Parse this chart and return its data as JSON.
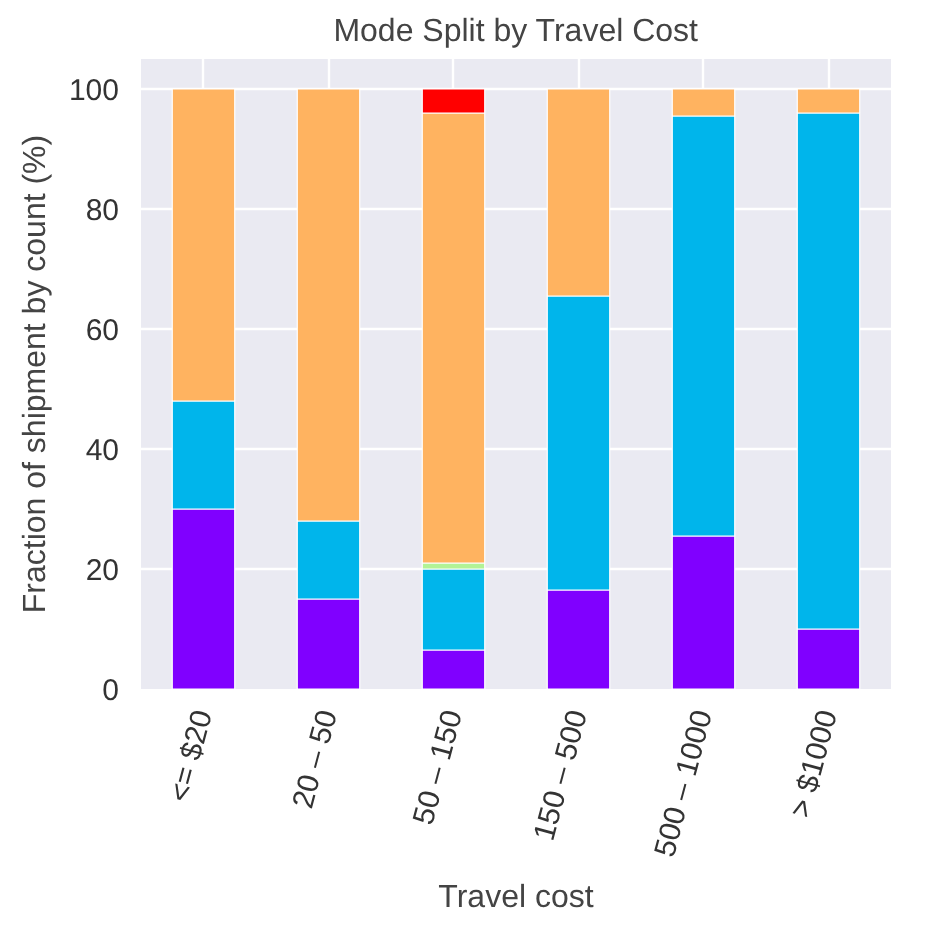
{
  "chart_data": {
    "type": "bar",
    "title": "Mode Split by Travel Cost",
    "xlabel": "Travel cost",
    "ylabel": "Fraction of shipment by count (%)",
    "categories": [
      "<= $20",
      "20 – 50",
      "50 – 150",
      "150 – 500",
      "500 – 1000",
      "> $1000"
    ],
    "stacked": true,
    "grid": true,
    "ylim": [
      0,
      105
    ],
    "yticks": [
      0,
      20,
      40,
      60,
      80,
      100
    ],
    "series": [
      {
        "color": "#8000ff",
        "values": [
          30,
          15,
          6.5,
          16.5,
          25.5,
          10
        ]
      },
      {
        "color": "#00b5eb",
        "values": [
          18,
          13,
          13.5,
          49,
          70,
          86
        ]
      },
      {
        "color": "#b2f396",
        "values": [
          0,
          0,
          1,
          0,
          0,
          0
        ]
      },
      {
        "color": "#ffb360",
        "values": [
          52,
          72,
          75,
          34.5,
          4.5,
          4
        ]
      },
      {
        "color": "#ff0000",
        "values": [
          0,
          0,
          4,
          0,
          0,
          0
        ]
      }
    ]
  }
}
